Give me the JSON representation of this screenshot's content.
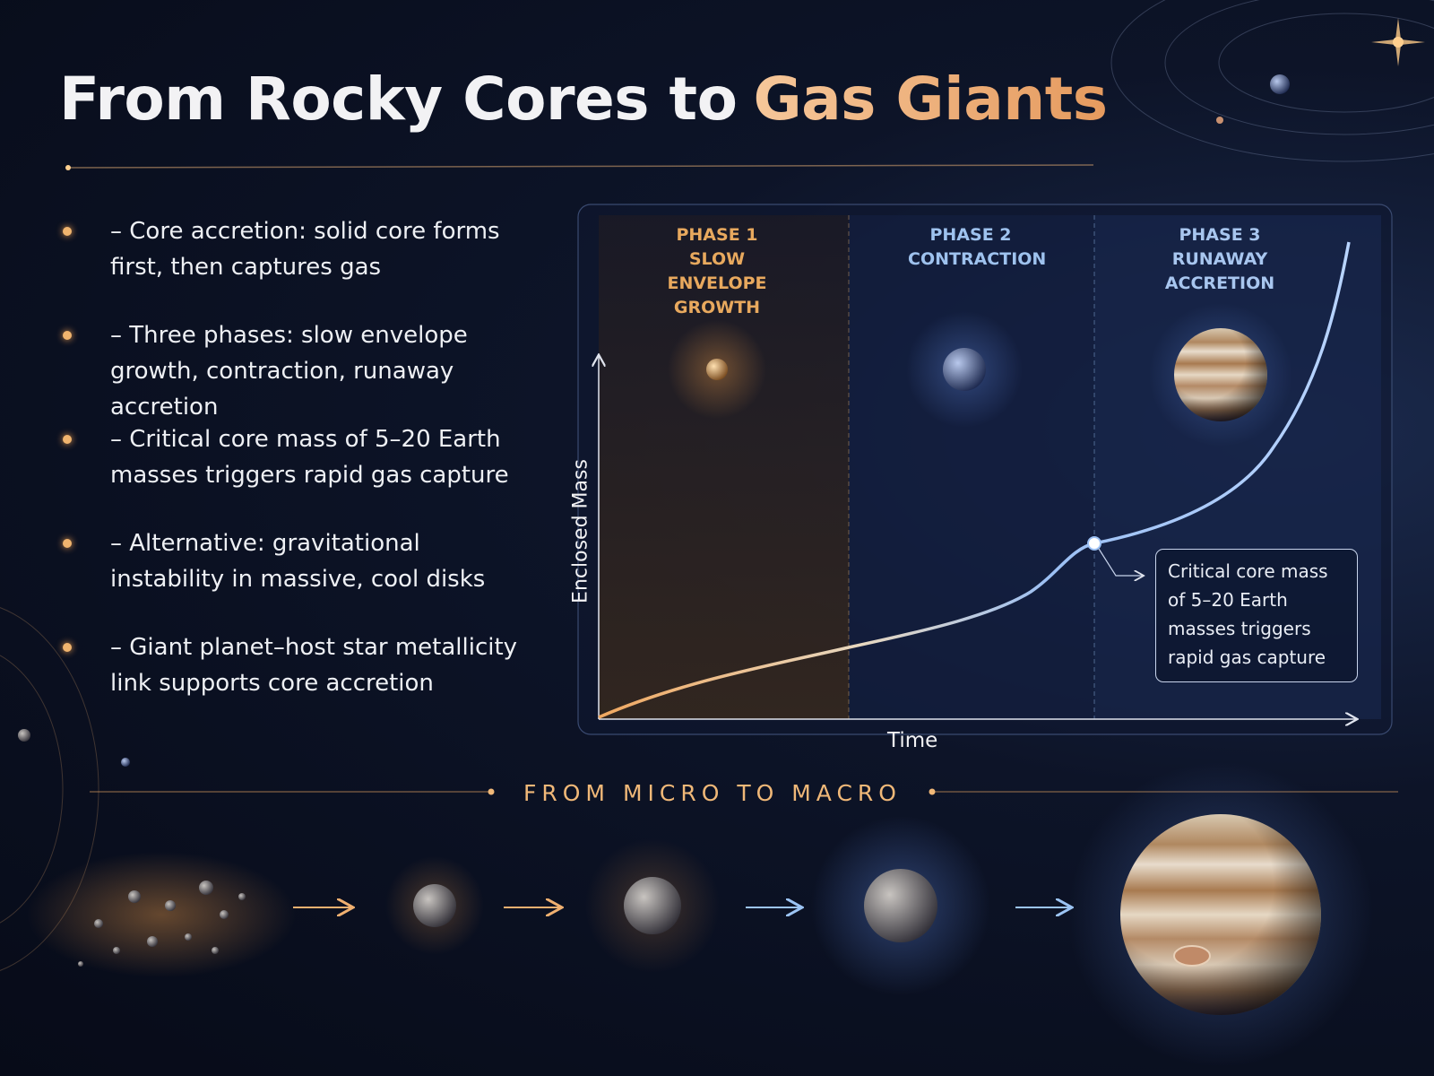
{
  "title": {
    "main": "From Rocky Cores to",
    "highlight": "Gas Giants"
  },
  "bullets": [
    "– Core accretion: solid core forms first, then captures gas",
    "– Three phases: slow envelope growth, contraction, runaway accretion",
    "– Critical core mass of 5–20 Earth masses triggers rapid gas capture",
    "– Alternative: gravitational instability in massive, cool disks",
    "– Giant planet–host star metallicity link supports core accretion"
  ],
  "diagram": {
    "phases": [
      {
        "label": "PHASE 1",
        "name": "SLOW ENVELOPE GROWTH"
      },
      {
        "label": "PHASE 2",
        "name": "CONTRACTION"
      },
      {
        "label": "PHASE 3",
        "name": "RUNAWAY ACCRETION"
      }
    ],
    "y_axis_label": "Enclosed Mass",
    "x_axis_label": "Time",
    "callout": "Critical core mass of 5–20 Earth masses triggers rapid gas capture"
  },
  "banner": "FROM MICRO TO MACRO"
}
